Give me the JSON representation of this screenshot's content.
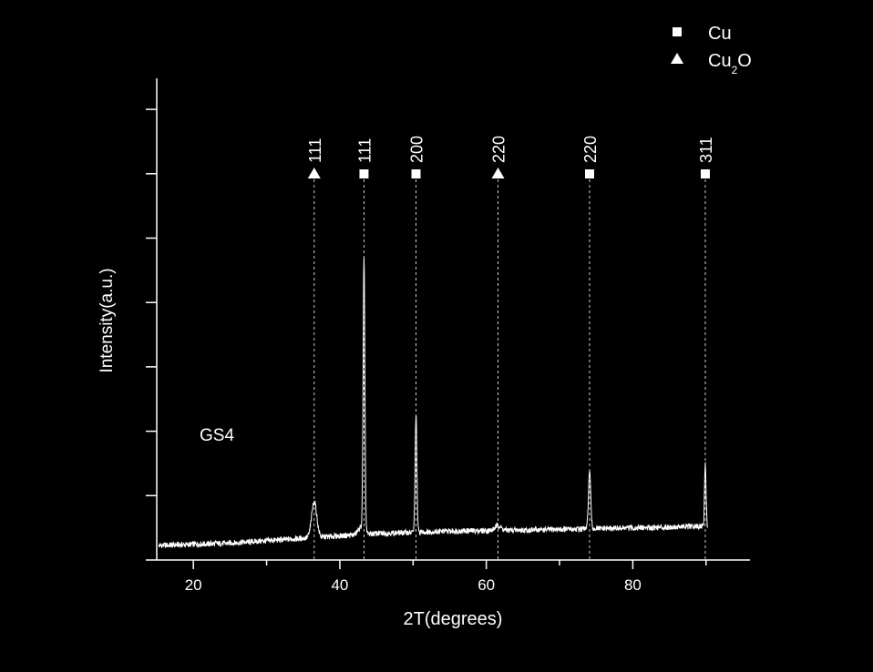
{
  "chart_data": {
    "type": "line",
    "xlabel": "2T(degrees)",
    "ylabel": "Intensity(a.u.)",
    "xlim": [
      15,
      96
    ],
    "ylim": [
      0,
      10
    ],
    "xticks": [
      20,
      40,
      60,
      80
    ],
    "sample_label": "GS4",
    "legend": {
      "placement": "top-right",
      "entries": [
        {
          "marker": "square",
          "label": "Cu",
          "label_main": "Cu",
          "label_sub": ""
        },
        {
          "marker": "triangle",
          "label": "Cu2O",
          "label_main": "Cu",
          "label_sub": "2",
          "label_tail": "O"
        }
      ]
    },
    "peak_annotations": [
      {
        "x": 36.5,
        "marker": "triangle",
        "label": "111"
      },
      {
        "x": 43.3,
        "marker": "square",
        "label": "111"
      },
      {
        "x": 50.4,
        "marker": "square",
        "label": "200"
      },
      {
        "x": 61.6,
        "marker": "triangle",
        "label": "220"
      },
      {
        "x": 74.1,
        "marker": "square",
        "label": "220"
      },
      {
        "x": 89.9,
        "marker": "square",
        "label": "311"
      }
    ],
    "baseline": [
      [
        15,
        0.3
      ],
      [
        25,
        0.35
      ],
      [
        35,
        0.45
      ],
      [
        45,
        0.55
      ],
      [
        55,
        0.6
      ],
      [
        65,
        0.62
      ],
      [
        75,
        0.65
      ],
      [
        90,
        0.7
      ],
      [
        96,
        0.7
      ]
    ],
    "peaks": [
      {
        "x": 36.5,
        "height": 0.75,
        "width": 0.35
      },
      {
        "x": 42.9,
        "height": 0.15,
        "width": 0.4
      },
      {
        "x": 43.3,
        "height": 5.6,
        "width": 0.12
      },
      {
        "x": 50.4,
        "height": 2.4,
        "width": 0.12
      },
      {
        "x": 61.6,
        "height": 0.1,
        "width": 0.4
      },
      {
        "x": 74.1,
        "height": 1.2,
        "width": 0.15
      },
      {
        "x": 89.9,
        "height": 1.3,
        "width": 0.1
      }
    ],
    "colors": {
      "background": "#000000",
      "foreground": "#ffffff"
    }
  }
}
